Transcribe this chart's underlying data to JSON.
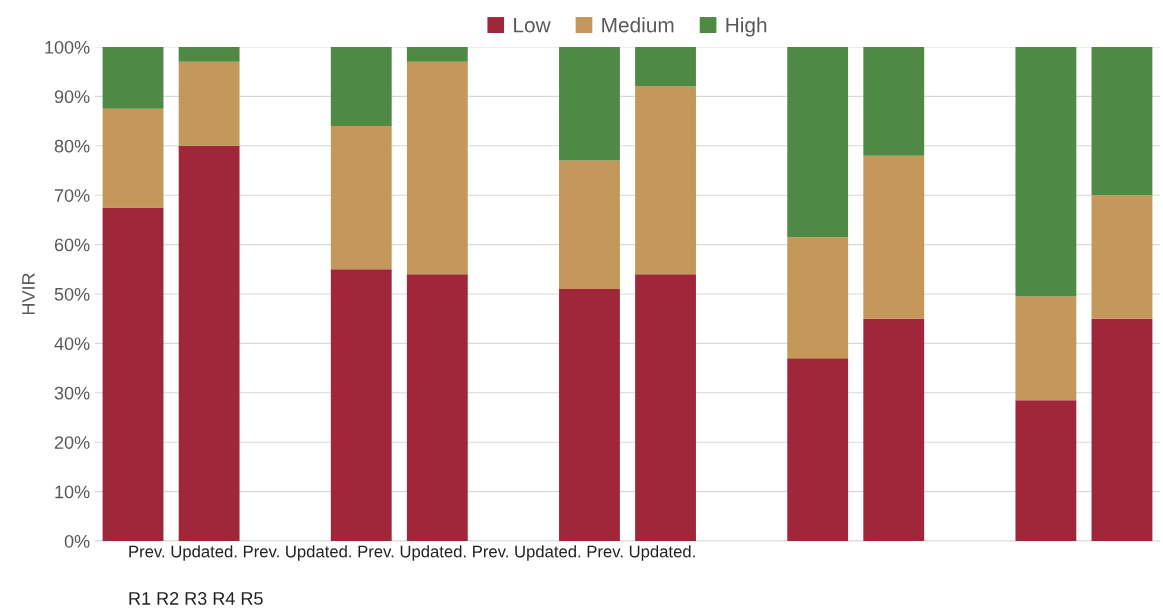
{
  "chart_data": {
    "type": "bar",
    "stacked": true,
    "ylabel": "HVIR",
    "categories": [
      null,
      null,
      null,
      null,
      null,
      null,
      null,
      null,
      null,
      null,
      null,
      null,
      null,
      null
    ],
    "series": [
      {
        "name": "Low",
        "color": "#a0273a",
        "values": [
          67.5,
          80,
          null,
          55,
          54,
          null,
          51,
          54,
          null,
          37,
          45,
          null,
          28.5,
          45
        ]
      },
      {
        "name": "Medium",
        "color": "#c4975a",
        "values": [
          20,
          17,
          null,
          29,
          43,
          null,
          26,
          38,
          null,
          24.5,
          33,
          null,
          21,
          25
        ]
      },
      {
        "name": "High",
        "color": "#4e8a44",
        "values": [
          12.5,
          3,
          null,
          16,
          3,
          null,
          23,
          8,
          null,
          38.5,
          22,
          null,
          50.5,
          30
        ]
      }
    ],
    "ylim": [
      0,
      100
    ],
    "yticks": [
      {
        "value": 0,
        "label": "0%"
      },
      {
        "value": 10,
        "label": "10%"
      },
      {
        "value": 20,
        "label": "20%"
      },
      {
        "value": 30,
        "label": "30%"
      },
      {
        "value": 40,
        "label": "40%"
      },
      {
        "value": 50,
        "label": "50%"
      },
      {
        "value": 60,
        "label": "60%"
      },
      {
        "value": 70,
        "label": "70%"
      },
      {
        "value": 80,
        "label": "80%"
      },
      {
        "value": 90,
        "label": "90%"
      },
      {
        "value": 100,
        "label": "100%"
      }
    ],
    "grid": "y",
    "legend": "top",
    "annotations": [
      "Prev. Updated. Prev. Updated. Prev. Updated. Prev. Updated. Prev. Updated.",
      "R1 R2 R3 R4 R5"
    ]
  }
}
